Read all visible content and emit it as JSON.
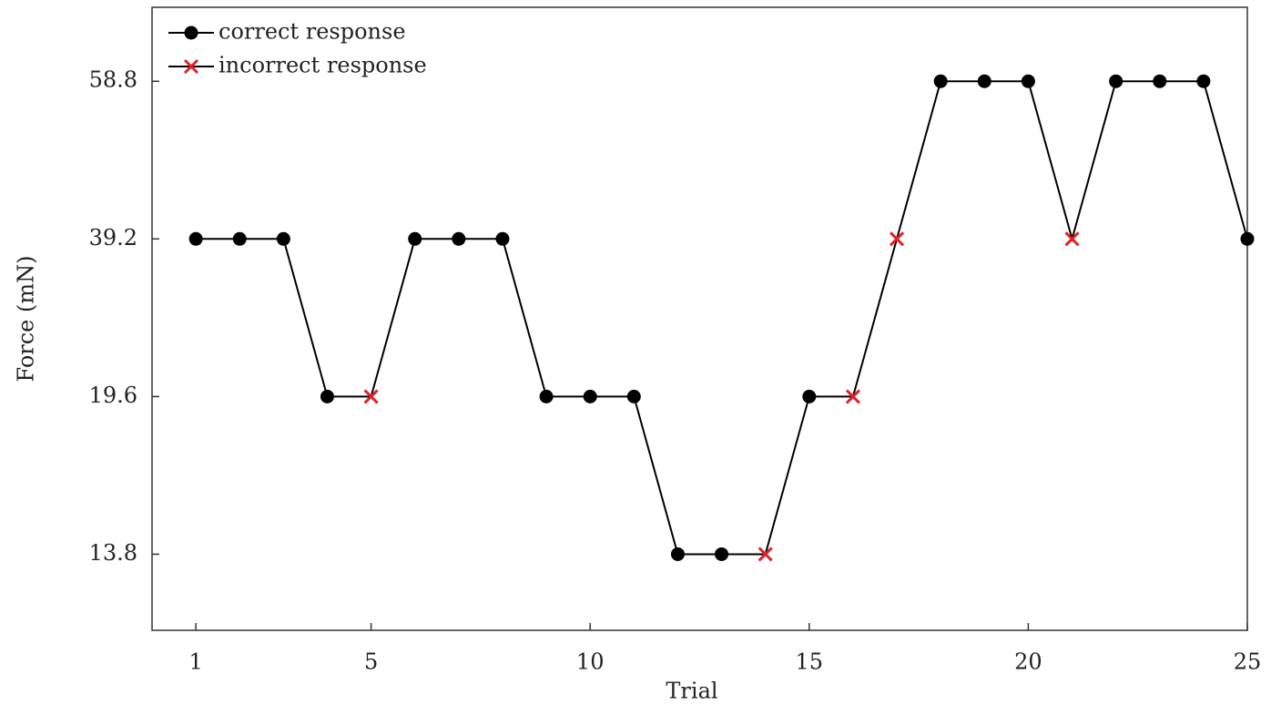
{
  "chart_data": {
    "type": "line",
    "xlabel": "Trial",
    "ylabel": "Force (mN)",
    "x": [
      1,
      2,
      3,
      4,
      5,
      6,
      7,
      8,
      9,
      10,
      11,
      12,
      13,
      14,
      15,
      16,
      17,
      18,
      19,
      20,
      21,
      22,
      23,
      24,
      25
    ],
    "series": [
      {
        "name": "correct response",
        "marker": "circle",
        "color": "#000000",
        "values": [
          39.2,
          39.2,
          39.2,
          19.6,
          null,
          39.2,
          39.2,
          39.2,
          19.6,
          19.6,
          19.6,
          13.8,
          13.8,
          null,
          19.6,
          null,
          null,
          58.8,
          58.8,
          58.8,
          null,
          58.8,
          58.8,
          58.8,
          39.2
        ]
      },
      {
        "name": "incorrect response",
        "marker": "x",
        "color": "#e0202a",
        "values": [
          null,
          null,
          null,
          null,
          19.6,
          null,
          null,
          null,
          null,
          null,
          null,
          null,
          null,
          13.8,
          null,
          19.6,
          39.2,
          null,
          null,
          null,
          39.2,
          null,
          null,
          null,
          null
        ]
      }
    ],
    "line_color": "#000000",
    "xlim": [
      0,
      25
    ],
    "xticks": [
      1,
      5,
      10,
      15,
      20,
      25
    ],
    "ylim": [
      11,
      68
    ],
    "yticks": [
      13.8,
      19.6,
      39.2,
      58.8
    ],
    "yscale": "piecewise",
    "legend": "upper left"
  }
}
